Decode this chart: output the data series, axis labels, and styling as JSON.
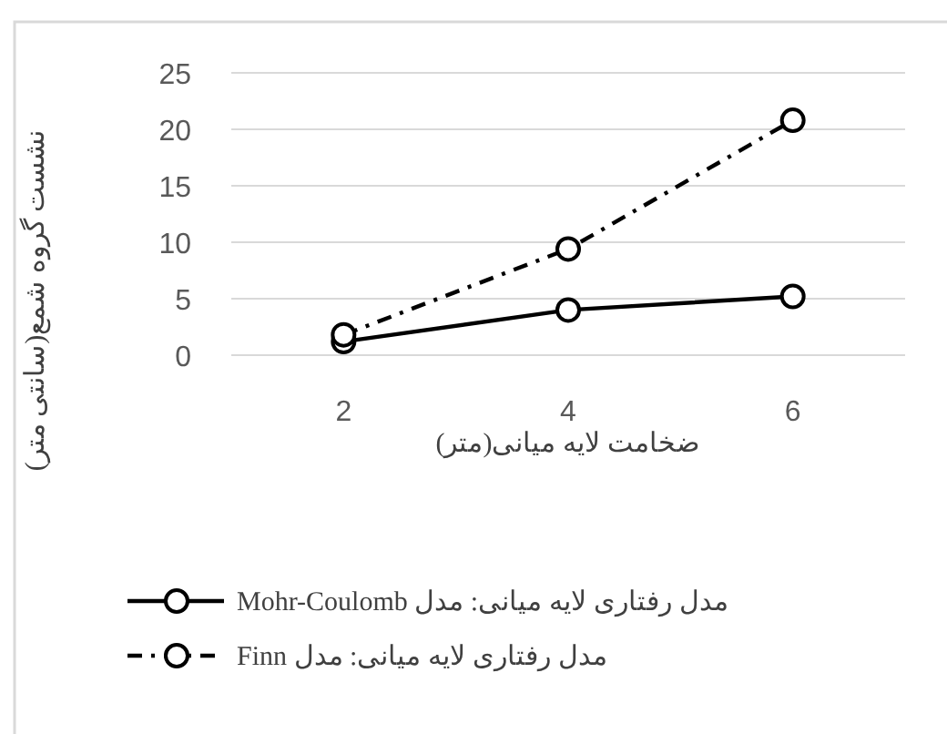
{
  "chart_data": {
    "type": "line",
    "xlabel": "ضخامت لایه میانی(متر)",
    "ylabel": "نشست گروه شمع(سانتی متر)",
    "categories": [
      "2",
      "4",
      "6"
    ],
    "series": [
      {
        "name": "مدل رفتاری لایه میانی: مدل Mohr-Coulomb",
        "color": "#000000",
        "values": [
          1.2,
          4.0,
          5.2
        ],
        "line_style": "solid"
      },
      {
        "name": "مدل رفتاری لایه میانی: مدل Finn",
        "color": "#000000",
        "values": [
          1.8,
          9.4,
          20.8
        ],
        "line_style": "dashdot"
      }
    ],
    "ylim": [
      0,
      25
    ],
    "yticks": [
      0,
      5,
      10,
      15,
      20,
      25
    ],
    "grid": "y",
    "legend": "bottom",
    "marker": "circle"
  }
}
